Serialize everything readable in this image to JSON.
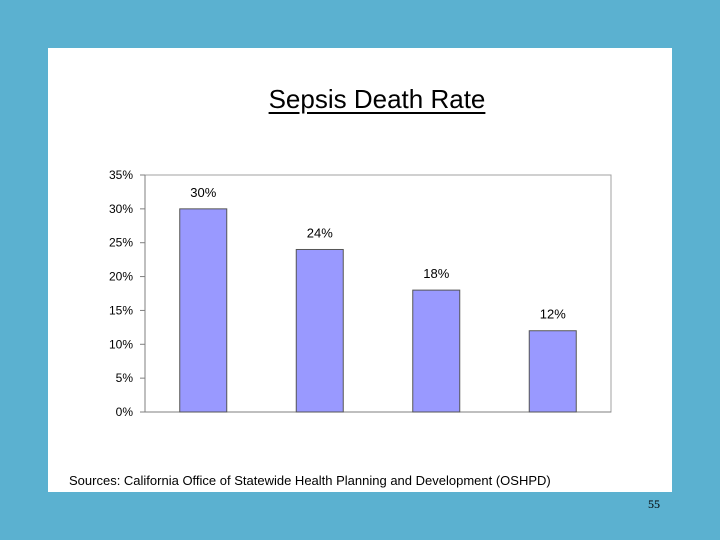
{
  "slide": {
    "source_note": "Sources: California Office of Statewide Health Planning and Development (OSHPD)",
    "page_number": "55"
  },
  "colors": {
    "background": "#5bb1d0",
    "panel": "#ffffff",
    "bar_fill": "#9999ff",
    "bar_stroke": "#555555",
    "plot_border": "#a0a0a0"
  },
  "chart_data": {
    "type": "bar",
    "title": "Sepsis Death Rate",
    "xlabel": "",
    "ylabel": "",
    "categories": [
      "",
      "",
      "",
      ""
    ],
    "values": [
      30,
      24,
      18,
      12
    ],
    "data_labels": [
      "30%",
      "24%",
      "18%",
      "12%"
    ],
    "ylim": [
      0,
      35
    ],
    "yticks": [
      0,
      5,
      10,
      15,
      20,
      25,
      30,
      35
    ],
    "ytick_labels": [
      "0%",
      "5%",
      "10%",
      "15%",
      "20%",
      "25%",
      "30%",
      "35%"
    ],
    "grid": false,
    "legend": "none"
  }
}
